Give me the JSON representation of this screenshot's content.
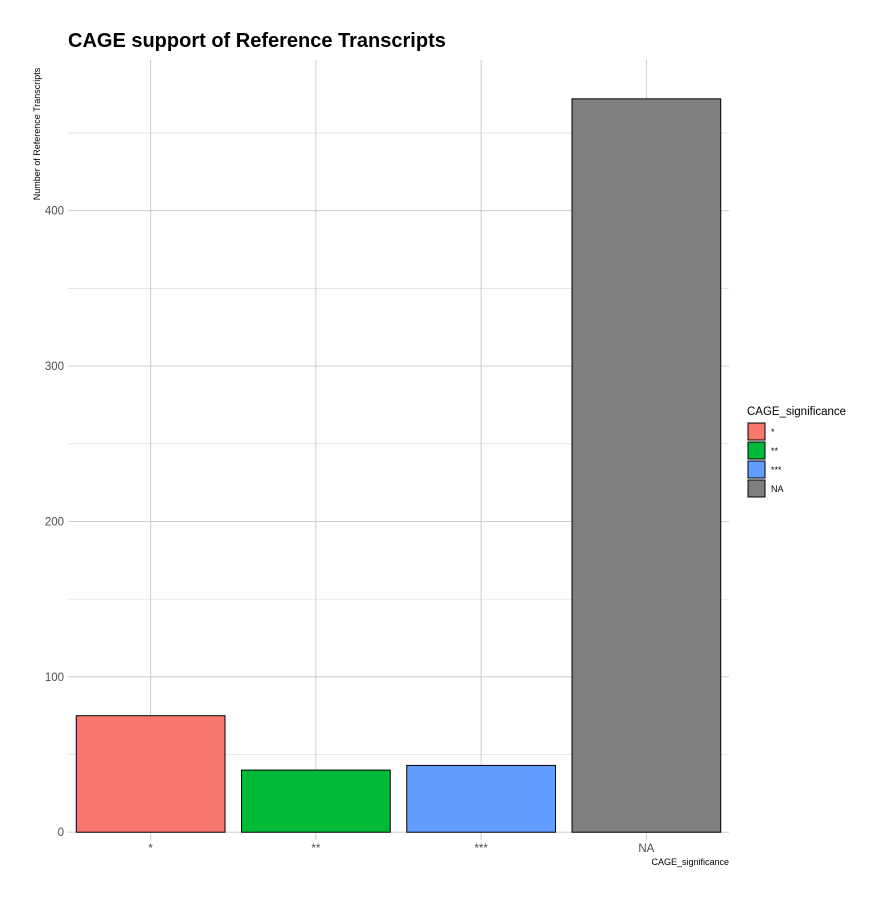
{
  "chart_data": {
    "type": "bar",
    "title": "CAGE support of Reference Transcripts",
    "xlabel": "CAGE_significance",
    "ylabel": "Number of Reference Transcripts",
    "categories": [
      "*",
      "**",
      "***",
      "NA"
    ],
    "values": [
      75,
      40,
      43,
      472
    ],
    "colors": [
      "#F8766D",
      "#00BA38",
      "#619CFF",
      "#7F7F7F"
    ],
    "ylim": [
      -5,
      497
    ],
    "yticks": [
      0,
      100,
      200,
      300,
      400
    ],
    "grid": true,
    "legend": {
      "title": "CAGE_significance",
      "placement": "right",
      "entries": [
        "*",
        "**",
        "***",
        "NA"
      ]
    }
  }
}
